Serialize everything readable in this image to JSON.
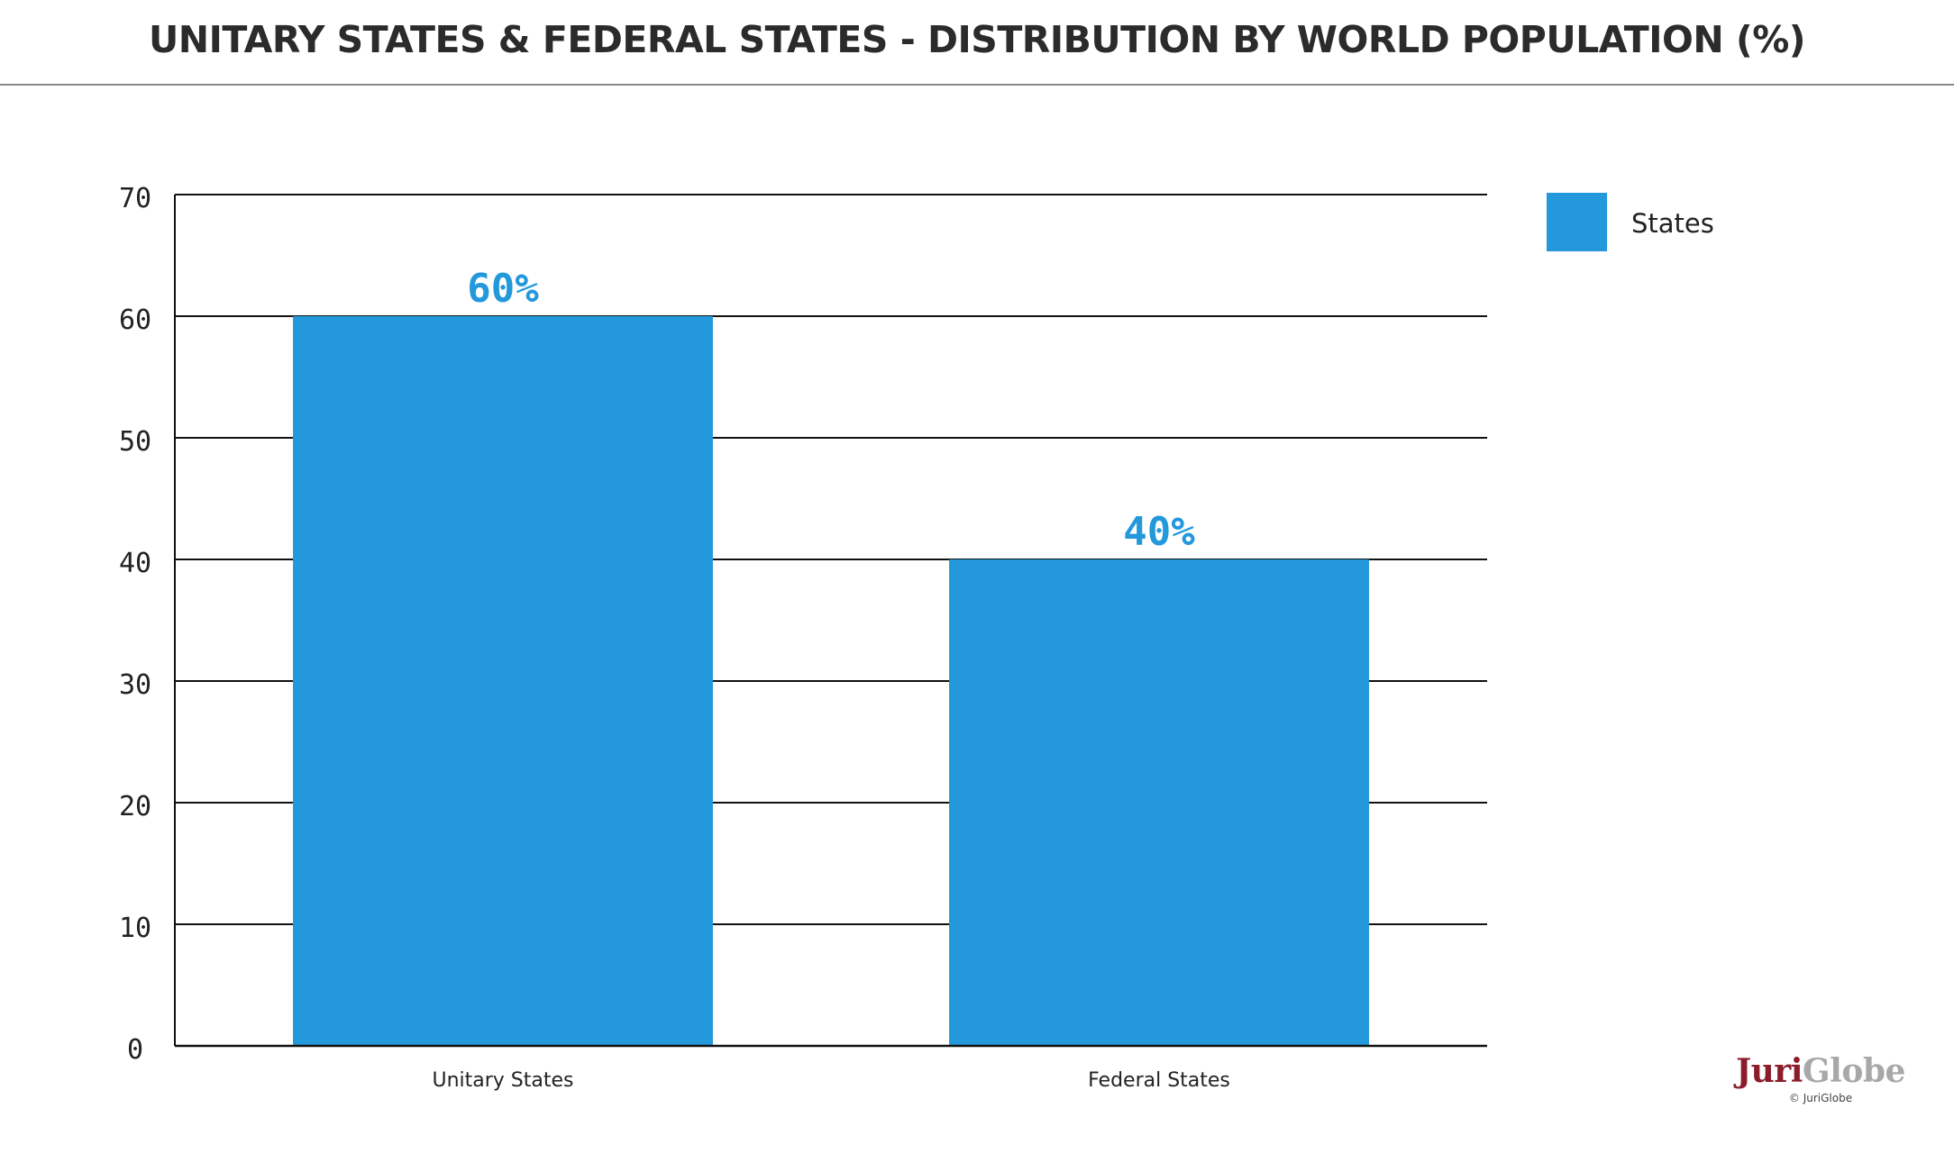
{
  "title": "UNITARY STATES & FEDERAL STATES - DISTRIBUTION BY WORLD POPULATION (%)",
  "chart_data": {
    "type": "bar",
    "title": "UNITARY STATES & FEDERAL STATES - DISTRIBUTION BY WORLD POPULATION (%)",
    "categories": [
      "Unitary States",
      "Federal States"
    ],
    "series": [
      {
        "name": "States",
        "values": [
          60,
          40
        ],
        "color": "#2399dc"
      }
    ],
    "data_labels": [
      "60%",
      "40%"
    ],
    "y_ticks": [
      0,
      10,
      20,
      30,
      40,
      50,
      60,
      70
    ],
    "ylim": [
      0,
      70
    ],
    "xlabel": "",
    "ylabel": "",
    "grid": true,
    "legend_position": "top-right"
  },
  "logo": {
    "brand_part1": "Juri",
    "brand_part2": "Globe",
    "copyright": "© JuriGlobe",
    "colors": {
      "juri": "#8b1c2c",
      "globe": "#a8a8a8"
    }
  }
}
